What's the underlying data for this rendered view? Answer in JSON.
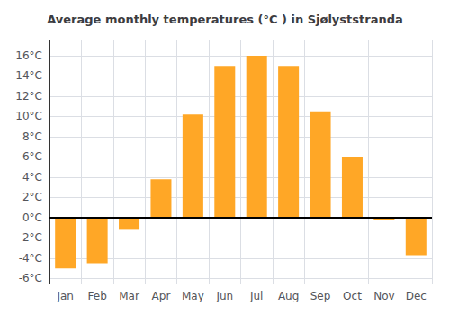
{
  "chart_data": {
    "type": "bar",
    "title": "Average monthly temperatures (°C ) in Sjølyststranda",
    "categories": [
      "Jan",
      "Feb",
      "Mar",
      "Apr",
      "May",
      "Jun",
      "Jul",
      "Aug",
      "Sep",
      "Oct",
      "Nov",
      "Dec"
    ],
    "values": [
      -5.0,
      -4.5,
      -1.2,
      3.8,
      10.2,
      15.0,
      16.0,
      15.0,
      10.5,
      6.0,
      -0.2,
      -3.7
    ],
    "color": "#FFA726",
    "ylim": [
      -6.5,
      17.5
    ],
    "yticks": [
      {
        "value": -6,
        "label": "-6°C"
      },
      {
        "value": -4,
        "label": "-4°C"
      },
      {
        "value": -2,
        "label": "-2°C"
      },
      {
        "value": 0,
        "label": "0°C"
      },
      {
        "value": 2,
        "label": "2°C"
      },
      {
        "value": 4,
        "label": "4°C"
      },
      {
        "value": 6,
        "label": "6°C"
      },
      {
        "value": 8,
        "label": "8°C"
      },
      {
        "value": 10,
        "label": "10°C"
      },
      {
        "value": 12,
        "label": "12°C"
      },
      {
        "value": 14,
        "label": "14°C"
      },
      {
        "value": 16,
        "label": "16°C"
      }
    ],
    "grid": true
  }
}
